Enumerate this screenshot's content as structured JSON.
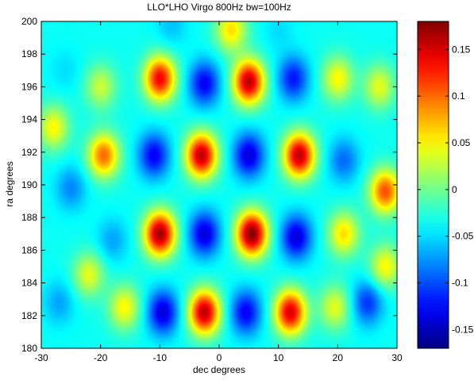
{
  "chart_data": {
    "type": "heatmap",
    "title": "LLO*LHO Virgo 800Hz bw=100Hz",
    "xlabel": "dec degrees",
    "ylabel": "ra degrees",
    "xlim": [
      -30,
      30
    ],
    "ylim": [
      180,
      200
    ],
    "xticks": [
      "-30",
      "-20",
      "-10",
      "0",
      "10",
      "20",
      "30"
    ],
    "yticks": [
      "180",
      "182",
      "184",
      "186",
      "188",
      "190",
      "192",
      "194",
      "196",
      "198",
      "200"
    ],
    "colormap": "jet",
    "clim": [
      -0.17,
      0.18
    ],
    "colorbar_ticks": [
      "0.15",
      "0.1",
      "0.05",
      "0",
      "-0.05",
      "-0.1",
      "-0.15"
    ],
    "grid": false,
    "baseline": -0.035,
    "blobs": [
      {
        "x": -9.5,
        "y": 182.2,
        "v": -0.14
      },
      {
        "x": -2.5,
        "y": 182.2,
        "v": 0.16
      },
      {
        "x": 4.5,
        "y": 182.2,
        "v": -0.13
      },
      {
        "x": 12,
        "y": 182.2,
        "v": 0.15
      },
      {
        "x": -16,
        "y": 182.5,
        "v": 0.05
      },
      {
        "x": 19.5,
        "y": 182.5,
        "v": 0.04
      },
      {
        "x": 25,
        "y": 182.8,
        "v": -0.11
      },
      {
        "x": -27,
        "y": 182.8,
        "v": -0.07
      },
      {
        "x": -10,
        "y": 187,
        "v": 0.17
      },
      {
        "x": -2.5,
        "y": 187,
        "v": -0.14
      },
      {
        "x": 5.5,
        "y": 187,
        "v": 0.18
      },
      {
        "x": 13,
        "y": 186.8,
        "v": -0.14
      },
      {
        "x": -18,
        "y": 186.6,
        "v": -0.07
      },
      {
        "x": 21,
        "y": 187,
        "v": 0.06
      },
      {
        "x": -11,
        "y": 191.8,
        "v": -0.13
      },
      {
        "x": -3,
        "y": 191.8,
        "v": 0.16
      },
      {
        "x": 5,
        "y": 191.8,
        "v": -0.14
      },
      {
        "x": 13.5,
        "y": 191.8,
        "v": 0.16
      },
      {
        "x": -19.5,
        "y": 191.8,
        "v": 0.1
      },
      {
        "x": 21,
        "y": 191.5,
        "v": -0.09
      },
      {
        "x": 28,
        "y": 189.6,
        "v": 0.11
      },
      {
        "x": -25,
        "y": 189.8,
        "v": -0.08
      },
      {
        "x": -10,
        "y": 196.5,
        "v": 0.14
      },
      {
        "x": -2.5,
        "y": 196.2,
        "v": -0.13
      },
      {
        "x": 5,
        "y": 196.3,
        "v": 0.16
      },
      {
        "x": 12.5,
        "y": 196.5,
        "v": -0.12
      },
      {
        "x": 20,
        "y": 196.5,
        "v": 0.05
      },
      {
        "x": -20,
        "y": 196,
        "v": 0.03
      },
      {
        "x": -26,
        "y": 197,
        "v": -0.05
      },
      {
        "x": 27,
        "y": 196,
        "v": 0.04
      },
      {
        "x": 2,
        "y": 199.5,
        "v": 0.06
      },
      {
        "x": -8,
        "y": 199.8,
        "v": -0.06
      },
      {
        "x": 10,
        "y": 199.5,
        "v": -0.05
      },
      {
        "x": -28,
        "y": 193.5,
        "v": 0.05
      },
      {
        "x": 28,
        "y": 185,
        "v": 0.05
      },
      {
        "x": -22,
        "y": 184.5,
        "v": 0.04
      }
    ]
  }
}
